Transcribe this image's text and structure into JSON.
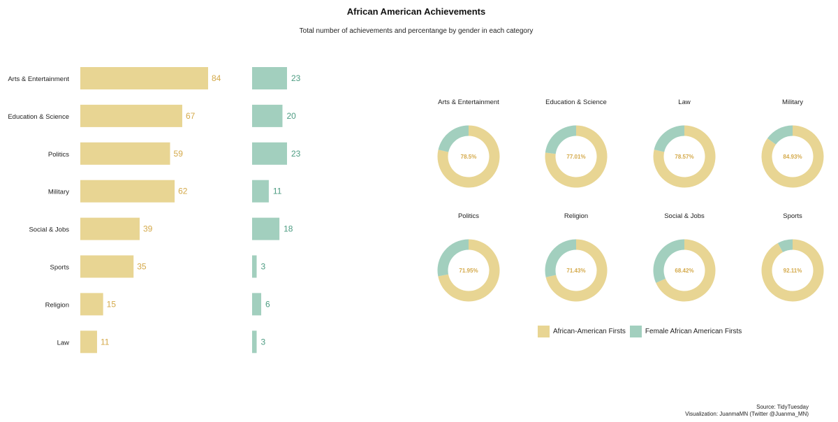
{
  "colors": {
    "african_american": "#e8d593",
    "female": "#a2cfbe",
    "african_american_text": "#d4a94a",
    "female_text": "#4d9c82"
  },
  "chart_data": [
    {
      "type": "bar",
      "orientation": "horizontal",
      "title": "African American Achievements",
      "subtitle": "Total number of achievements and percentange by gender in each category",
      "categories": [
        "Arts & Entertainment",
        "Education & Science",
        "Politics",
        "Military",
        "Social & Jobs",
        "Sports",
        "Religion",
        "Law"
      ],
      "series": [
        {
          "name": "African-American Firsts",
          "values": [
            84,
            67,
            59,
            62,
            39,
            35,
            15,
            11
          ]
        },
        {
          "name": "Female African American Firsts",
          "values": [
            23,
            20,
            23,
            11,
            18,
            3,
            6,
            3
          ]
        }
      ],
      "grid": false
    },
    {
      "type": "pie",
      "style": "donut",
      "panels": [
        {
          "label": "Arts & Entertainment",
          "percent": 78.5,
          "percent_label": "78.5%"
        },
        {
          "label": "Education & Science",
          "percent": 77.01,
          "percent_label": "77.01%"
        },
        {
          "label": "Law",
          "percent": 78.57,
          "percent_label": "78.57%"
        },
        {
          "label": "Military",
          "percent": 84.93,
          "percent_label": "84.93%"
        },
        {
          "label": "Politics",
          "percent": 71.95,
          "percent_label": "71.95%"
        },
        {
          "label": "Religion",
          "percent": 71.43,
          "percent_label": "71.43%"
        },
        {
          "label": "Social & Jobs",
          "percent": 68.42,
          "percent_label": "68.42%"
        },
        {
          "label": "Sports",
          "percent": 92.11,
          "percent_label": "92.11%"
        }
      ],
      "legend": {
        "placement": "bottom",
        "entries": [
          "African-American Firsts",
          "Female African American Firsts"
        ]
      }
    }
  ],
  "credits": {
    "source": "Source: TidyTuesday",
    "visualization": "Visualization: JuanmaMN (Twitter @Juanma_MN)"
  }
}
